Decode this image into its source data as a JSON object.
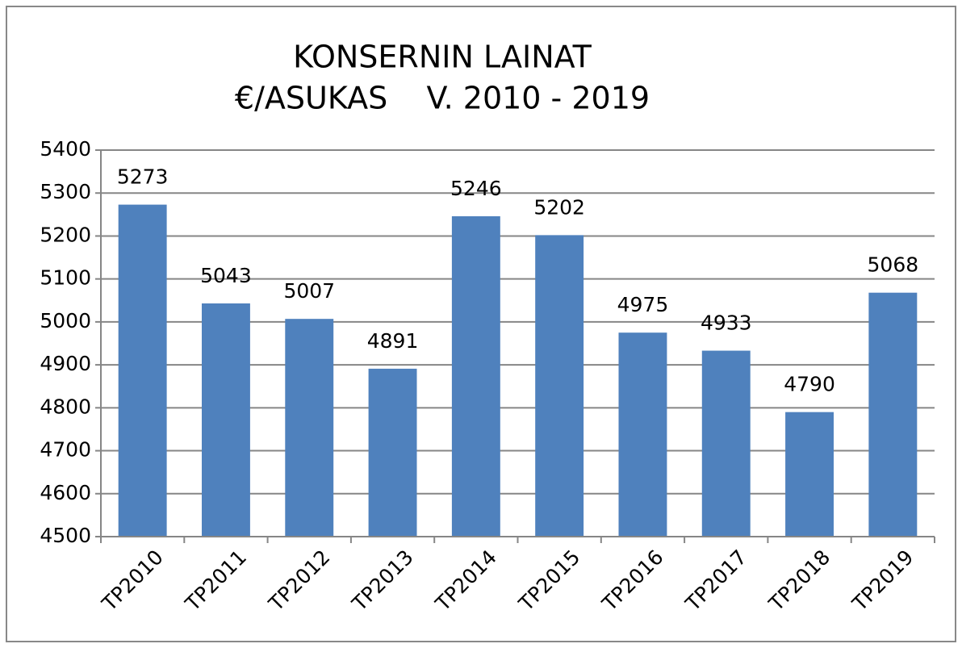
{
  "chart_data": {
    "type": "bar",
    "title": [
      "KONSERNIN LAINAT",
      "€/ASUKAS    V. 2010 - 2019"
    ],
    "categories": [
      "TP2010",
      "TP2011",
      "TP2012",
      "TP2013",
      "TP2014",
      "TP2015",
      "TP2016",
      "TP2017",
      "TP2018",
      "TP2019"
    ],
    "values": [
      5273,
      5043,
      5007,
      4891,
      5246,
      5202,
      4975,
      4933,
      4790,
      5068
    ],
    "color": "#4f81bd",
    "ylim": [
      4500,
      5400
    ],
    "yticks": [
      4500,
      4600,
      4700,
      4800,
      4900,
      5000,
      5100,
      5200,
      5300,
      5400
    ],
    "grid": true
  }
}
